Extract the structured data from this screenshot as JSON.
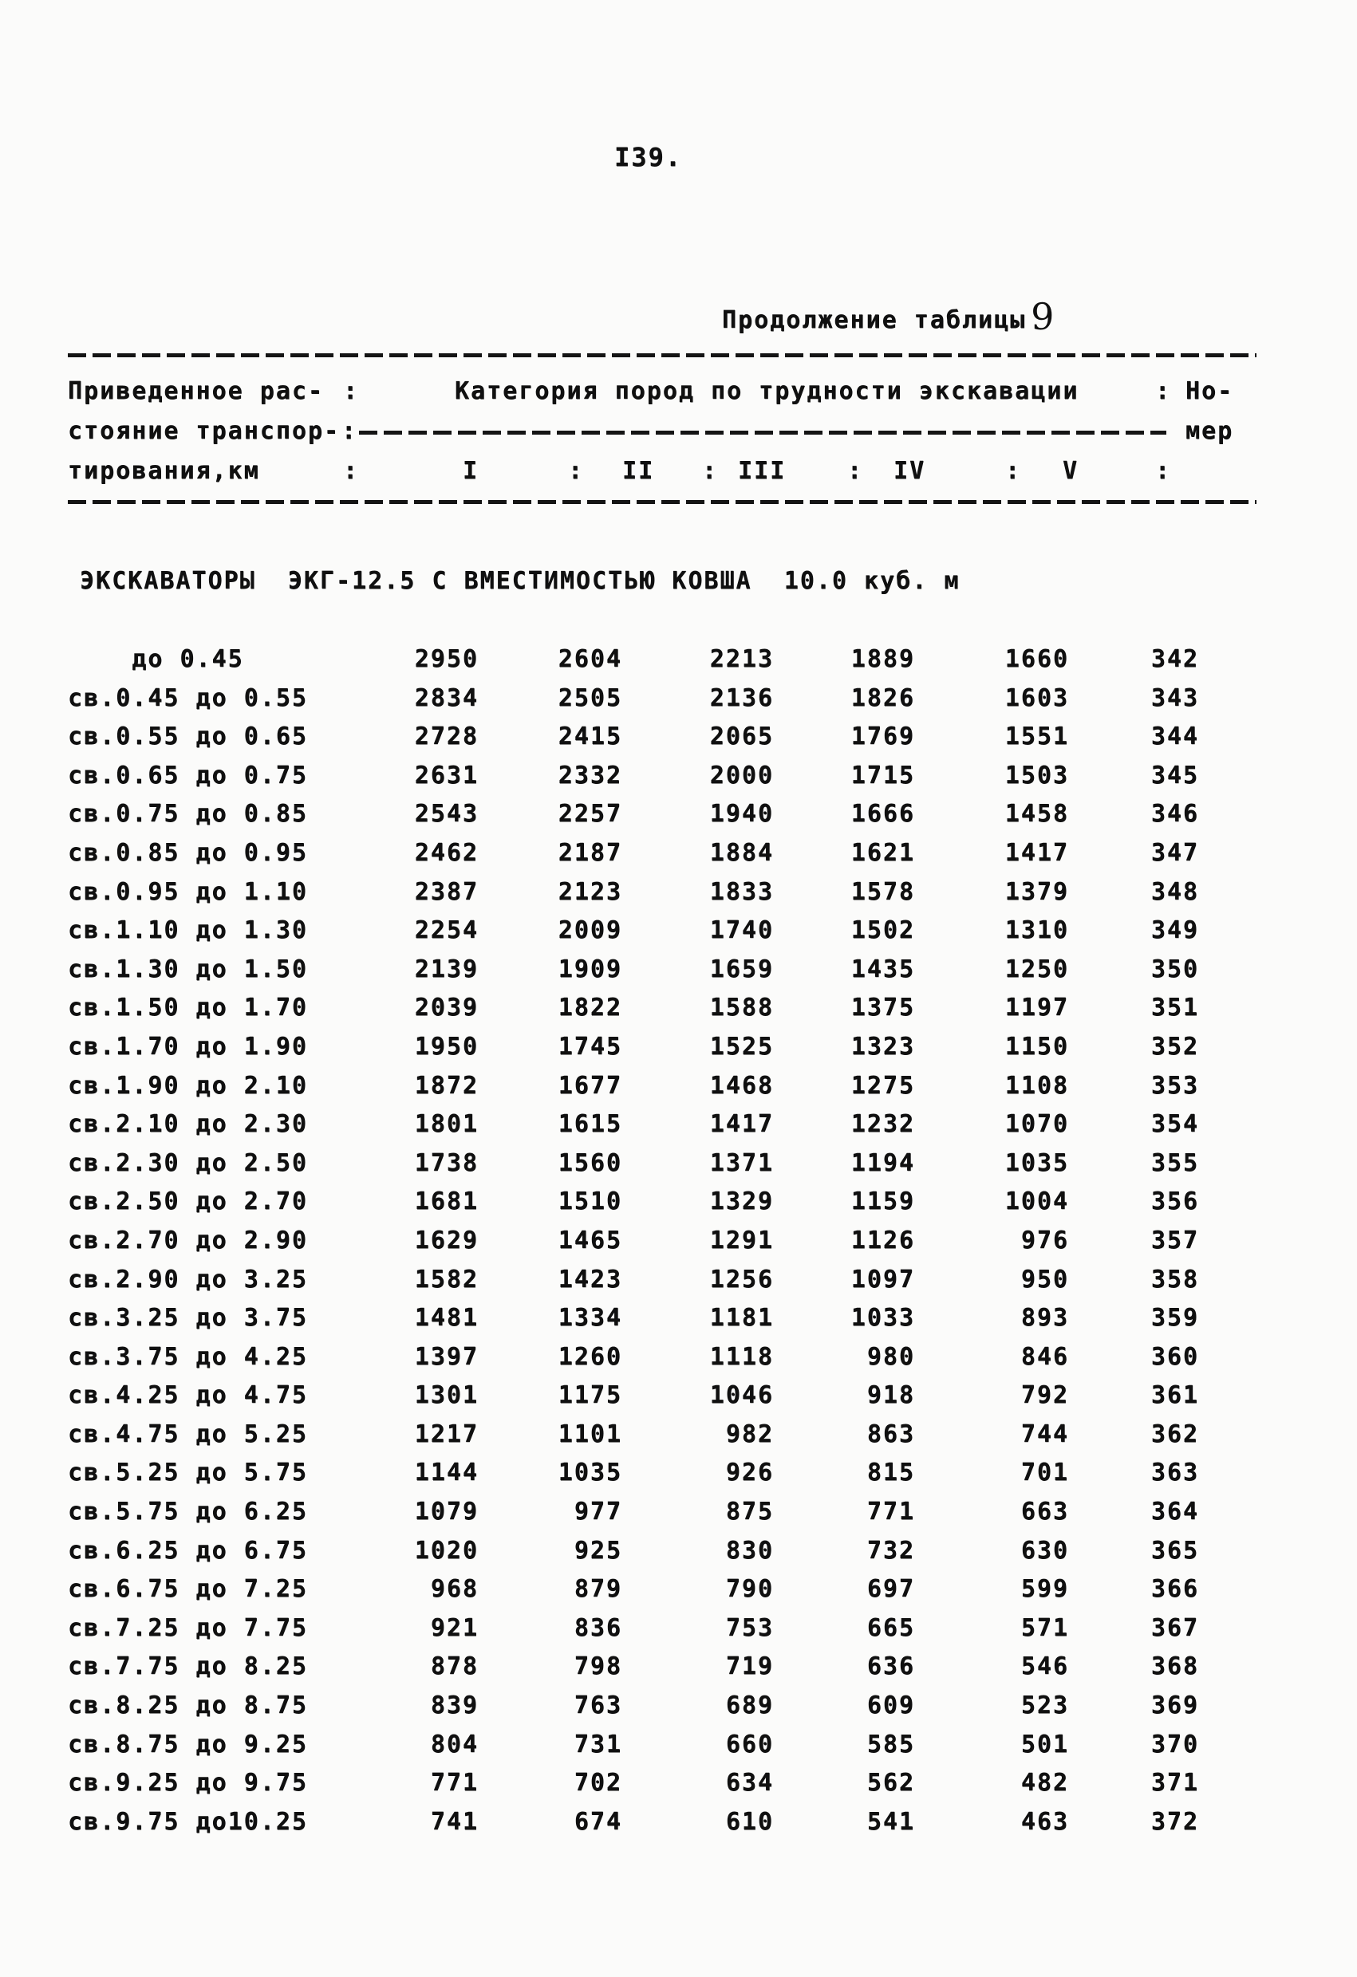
{
  "page": {
    "number": "I39.",
    "continuation_label": "Продолжение таблицы",
    "table_number": "9"
  },
  "table": {
    "header": {
      "col1_line1": "Приведенное рас-",
      "col1_line2": "стояние транспор-",
      "col1_line3": "тирования,км",
      "separator": ":",
      "categories_title": "Категория пород по трудности экскавации",
      "number_col_line1": "Но-",
      "number_col_line2": "мер",
      "category_columns": [
        "I",
        "II",
        "III",
        "IV",
        "V"
      ]
    },
    "section_title": "ЭКСКАВАТОРЫ  ЭКГ-12.5 С ВМЕСТИМОСТЬЮ КОВША  10.0 куб. м",
    "rows": [
      {
        "range": "    до 0.45",
        "values": [
          "2950",
          "2604",
          "2213",
          "1889",
          "1660"
        ],
        "num": "342"
      },
      {
        "range": "св.0.45 до 0.55",
        "values": [
          "2834",
          "2505",
          "2136",
          "1826",
          "1603"
        ],
        "num": "343"
      },
      {
        "range": "св.0.55 до 0.65",
        "values": [
          "2728",
          "2415",
          "2065",
          "1769",
          "1551"
        ],
        "num": "344"
      },
      {
        "range": "св.0.65 до 0.75",
        "values": [
          "2631",
          "2332",
          "2000",
          "1715",
          "1503"
        ],
        "num": "345"
      },
      {
        "range": "св.0.75 до 0.85",
        "values": [
          "2543",
          "2257",
          "1940",
          "1666",
          "1458"
        ],
        "num": "346"
      },
      {
        "range": "св.0.85 до 0.95",
        "values": [
          "2462",
          "2187",
          "1884",
          "1621",
          "1417"
        ],
        "num": "347"
      },
      {
        "range": "св.0.95 до 1.10",
        "values": [
          "2387",
          "2123",
          "1833",
          "1578",
          "1379"
        ],
        "num": "348"
      },
      {
        "range": "св.1.10 до 1.30",
        "values": [
          "2254",
          "2009",
          "1740",
          "1502",
          "1310"
        ],
        "num": "349"
      },
      {
        "range": "св.1.30 до 1.50",
        "values": [
          "2139",
          "1909",
          "1659",
          "1435",
          "1250"
        ],
        "num": "350"
      },
      {
        "range": "св.1.50 до 1.70",
        "values": [
          "2039",
          "1822",
          "1588",
          "1375",
          "1197"
        ],
        "num": "351"
      },
      {
        "range": "св.1.70 до 1.90",
        "values": [
          "1950",
          "1745",
          "1525",
          "1323",
          "1150"
        ],
        "num": "352"
      },
      {
        "range": "св.1.90 до 2.10",
        "values": [
          "1872",
          "1677",
          "1468",
          "1275",
          "1108"
        ],
        "num": "353"
      },
      {
        "range": "св.2.10 до 2.30",
        "values": [
          "1801",
          "1615",
          "1417",
          "1232",
          "1070"
        ],
        "num": "354"
      },
      {
        "range": "св.2.30 до 2.50",
        "values": [
          "1738",
          "1560",
          "1371",
          "1194",
          "1035"
        ],
        "num": "355"
      },
      {
        "range": "св.2.50 до 2.70",
        "values": [
          "1681",
          "1510",
          "1329",
          "1159",
          "1004"
        ],
        "num": "356"
      },
      {
        "range": "св.2.70 до 2.90",
        "values": [
          "1629",
          "1465",
          "1291",
          "1126",
          "976"
        ],
        "num": "357"
      },
      {
        "range": "св.2.90 до 3.25",
        "values": [
          "1582",
          "1423",
          "1256",
          "1097",
          "950"
        ],
        "num": "358"
      },
      {
        "range": "св.3.25 до 3.75",
        "values": [
          "1481",
          "1334",
          "1181",
          "1033",
          "893"
        ],
        "num": "359"
      },
      {
        "range": "св.3.75 до 4.25",
        "values": [
          "1397",
          "1260",
          "1118",
          "980",
          "846"
        ],
        "num": "360"
      },
      {
        "range": "св.4.25 до 4.75",
        "values": [
          "1301",
          "1175",
          "1046",
          "918",
          "792"
        ],
        "num": "361"
      },
      {
        "range": "св.4.75 до 5.25",
        "values": [
          "1217",
          "1101",
          "982",
          "863",
          "744"
        ],
        "num": "362"
      },
      {
        "range": "св.5.25 до 5.75",
        "values": [
          "1144",
          "1035",
          "926",
          "815",
          "701"
        ],
        "num": "363"
      },
      {
        "range": "св.5.75 до 6.25",
        "values": [
          "1079",
          "977",
          "875",
          "771",
          "663"
        ],
        "num": "364"
      },
      {
        "range": "св.6.25 до 6.75",
        "values": [
          "1020",
          "925",
          "830",
          "732",
          "630"
        ],
        "num": "365"
      },
      {
        "range": "св.6.75 до 7.25",
        "values": [
          "968",
          "879",
          "790",
          "697",
          "599"
        ],
        "num": "366"
      },
      {
        "range": "св.7.25 до 7.75",
        "values": [
          "921",
          "836",
          "753",
          "665",
          "571"
        ],
        "num": "367"
      },
      {
        "range": "св.7.75 до 8.25",
        "values": [
          "878",
          "798",
          "719",
          "636",
          "546"
        ],
        "num": "368"
      },
      {
        "range": "св.8.25 до 8.75",
        "values": [
          "839",
          "763",
          "689",
          "609",
          "523"
        ],
        "num": "369"
      },
      {
        "range": "св.8.75 до 9.25",
        "values": [
          "804",
          "731",
          "660",
          "585",
          "501"
        ],
        "num": "370"
      },
      {
        "range": "св.9.25 до 9.75",
        "values": [
          "771",
          "702",
          "634",
          "562",
          "482"
        ],
        "num": "371"
      },
      {
        "range": "св.9.75 до10.25",
        "values": [
          "741",
          "674",
          "610",
          "541",
          "463"
        ],
        "num": "372"
      }
    ]
  }
}
